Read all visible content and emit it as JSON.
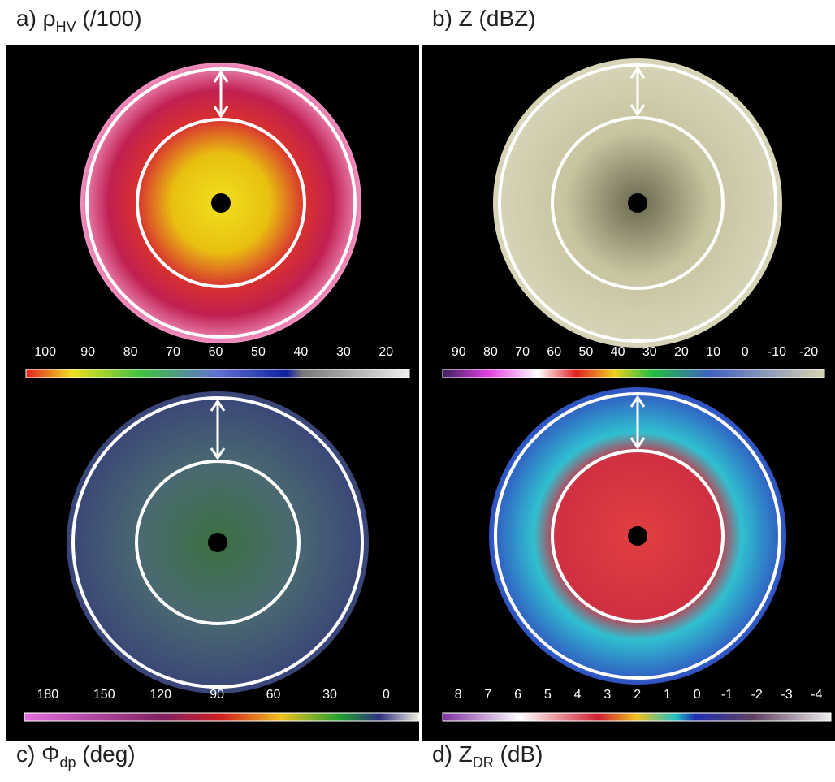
{
  "panels": [
    {
      "caption": {
        "prefix": "a) ρ",
        "sub": "HV",
        "suffix": " (/100)"
      },
      "colorbar_ticks": [
        100,
        90,
        80,
        70,
        60,
        50,
        40,
        30,
        20
      ]
    },
    {
      "caption": {
        "prefix": "b) Z (dBZ)"
      },
      "colorbar_ticks": [
        90,
        80,
        70,
        60,
        50,
        40,
        30,
        20,
        10,
        0,
        -10,
        -20
      ]
    },
    {
      "caption": {
        "prefix": "c) Φ",
        "sub": "dp",
        "suffix": " (deg)"
      },
      "colorbar_ticks": [
        180,
        150,
        120,
        90,
        60,
        30,
        0
      ]
    },
    {
      "caption": {
        "prefix": "d) Z",
        "sub": "DR",
        "suffix": " (dB)"
      },
      "colorbar_ticks": [
        8,
        7,
        6,
        5,
        4,
        3,
        2,
        1,
        0,
        -1,
        -2,
        -3,
        -4
      ]
    }
  ]
}
